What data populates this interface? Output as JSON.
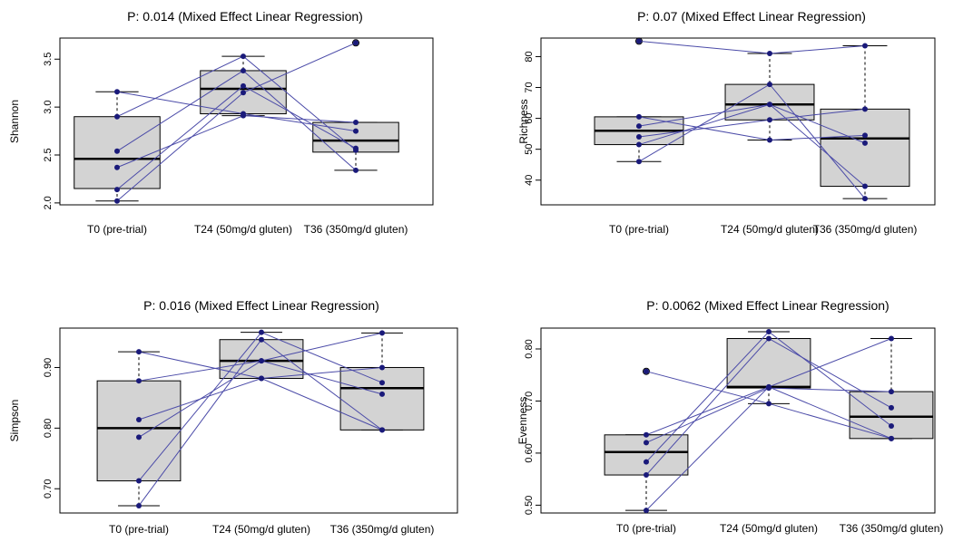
{
  "chart_data": [
    {
      "type": "box",
      "title": "P: 0.014 (Mixed Effect Linear Regression)",
      "ylabel": "Shannon",
      "categories": [
        "T0 (pre-trial)",
        "T24 (50mg/d gluten)",
        "T36 (350mg/d gluten)"
      ],
      "yticks": [
        "2.0",
        "2.5",
        "3.0",
        "3.5"
      ],
      "ylim": [
        1.98,
        3.72
      ],
      "boxes": [
        {
          "min": 2.02,
          "q1": 2.15,
          "median": 2.46,
          "q3": 2.9,
          "max": 3.16
        },
        {
          "min": 2.91,
          "q1": 2.93,
          "median": 3.19,
          "q3": 3.38,
          "max": 3.53
        },
        {
          "min": 2.34,
          "q1": 2.53,
          "median": 2.65,
          "q3": 2.84,
          "max": 2.84
        }
      ],
      "subjects": [
        [
          2.02,
          3.15,
          3.67
        ],
        [
          2.14,
          3.22,
          2.57
        ],
        [
          2.37,
          2.91,
          2.84
        ],
        [
          2.54,
          3.38,
          2.34
        ],
        [
          2.9,
          3.53,
          2.55
        ],
        [
          3.16,
          2.93,
          2.75
        ]
      ],
      "outliers": [
        {
          "group": 2,
          "value": 3.67
        }
      ]
    },
    {
      "type": "box",
      "title": "P: 0.07 (Mixed Effect Linear Regression)",
      "ylabel": "Richness",
      "categories": [
        "T0 (pre-trial)",
        "T24 (50mg/d gluten)",
        "T36 (350mg/d gluten)"
      ],
      "yticks": [
        "40",
        "50",
        "60",
        "70",
        "80"
      ],
      "ylim": [
        32,
        86
      ],
      "boxes": [
        {
          "min": 46,
          "q1": 51.5,
          "median": 56,
          "q3": 60.5,
          "max": 60.5
        },
        {
          "min": 53,
          "q1": 59.5,
          "median": 64.5,
          "q3": 71,
          "max": 81
        },
        {
          "min": 34,
          "q1": 38,
          "median": 53.5,
          "q3": 63,
          "max": 83.5
        }
      ],
      "subjects": [
        [
          46,
          71,
          34
        ],
        [
          51.5,
          64.5,
          52
        ],
        [
          54,
          59.5,
          63
        ],
        [
          57.5,
          64.5,
          38
        ],
        [
          60.5,
          53,
          54.5
        ],
        [
          85,
          81,
          83.5
        ]
      ],
      "outliers": [
        {
          "group": 0,
          "value": 85
        }
      ]
    },
    {
      "type": "box",
      "title": "P: 0.016 (Mixed Effect Linear Regression)",
      "ylabel": "Simpson",
      "categories": [
        "T0 (pre-trial)",
        "T24 (50mg/d gluten)",
        "T36 (350mg/d gluten)"
      ],
      "yticks": [
        "0.70",
        "0.80",
        "0.90"
      ],
      "ylim": [
        0.66,
        0.965
      ],
      "boxes": [
        {
          "min": 0.672,
          "q1": 0.713,
          "median": 0.8,
          "q3": 0.878,
          "max": 0.926
        },
        {
          "min": 0.882,
          "q1": 0.882,
          "median": 0.911,
          "q3": 0.946,
          "max": 0.958
        },
        {
          "min": 0.797,
          "q1": 0.797,
          "median": 0.866,
          "q3": 0.9,
          "max": 0.957
        }
      ],
      "subjects": [
        [
          0.672,
          0.946,
          0.797
        ],
        [
          0.713,
          0.958,
          0.875
        ],
        [
          0.785,
          0.911,
          0.957
        ],
        [
          0.814,
          0.882,
          0.9
        ],
        [
          0.878,
          0.911,
          0.856
        ],
        [
          0.926,
          0.882,
          0.797
        ]
      ],
      "outliers": []
    },
    {
      "type": "box",
      "title": "P: 0.0062 (Mixed Effect Linear Regression)",
      "ylabel": "Evenness",
      "categories": [
        "T0 (pre-trial)",
        "T24 (50mg/d gluten)",
        "T36 (350mg/d gluten)"
      ],
      "yticks": [
        "0.50",
        "0.60",
        "0.70",
        "0.80"
      ],
      "ylim": [
        0.485,
        0.84
      ],
      "boxes": [
        {
          "min": 0.49,
          "q1": 0.558,
          "median": 0.602,
          "q3": 0.635,
          "max": 0.635
        },
        {
          "min": 0.695,
          "q1": 0.725,
          "median": 0.727,
          "q3": 0.82,
          "max": 0.833
        },
        {
          "min": 0.628,
          "q1": 0.628,
          "median": 0.67,
          "q3": 0.718,
          "max": 0.82
        }
      ],
      "subjects": [
        [
          0.49,
          0.727,
          0.82
        ],
        [
          0.558,
          0.82,
          0.687
        ],
        [
          0.583,
          0.833,
          0.652
        ],
        [
          0.62,
          0.725,
          0.718
        ],
        [
          0.635,
          0.727,
          0.628
        ],
        [
          0.757,
          0.695,
          0.628
        ]
      ],
      "outliers": [
        {
          "group": 0,
          "value": 0.757
        }
      ]
    }
  ]
}
